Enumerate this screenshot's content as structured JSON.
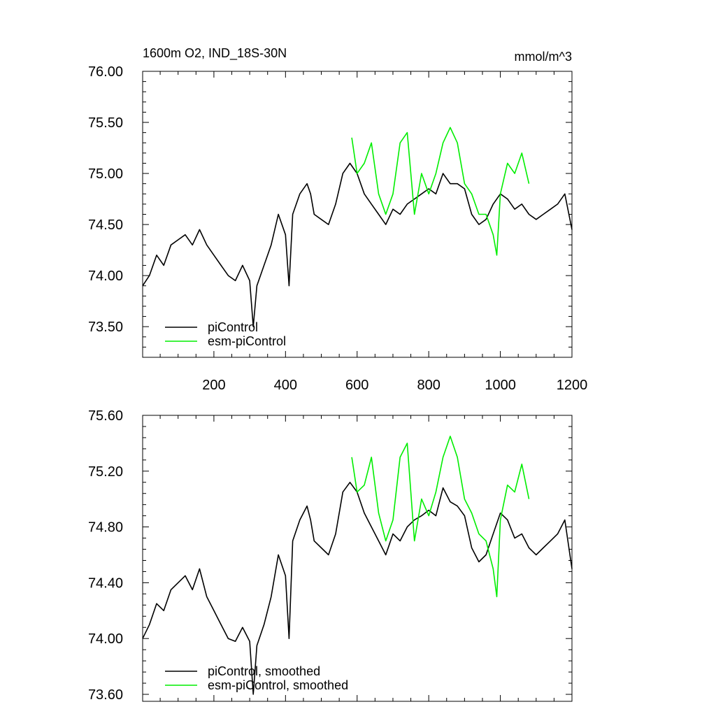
{
  "chart_data": [
    {
      "type": "line",
      "title": "1600m O2, IND_18S-30N",
      "units": "mmol/m^3",
      "xlim": [
        1,
        1200
      ],
      "ylim": [
        73.2,
        76.0
      ],
      "x_ticks": [
        200,
        400,
        600,
        800,
        1000,
        1200
      ],
      "x_tick_labels": [
        "200",
        "400",
        "600",
        "800",
        "1000",
        "1200"
      ],
      "y_ticks": [
        73.5,
        74.0,
        74.5,
        75.0,
        75.5,
        76.0
      ],
      "y_tick_labels": [
        "73.50",
        "74.00",
        "74.50",
        "75.00",
        "75.50",
        "76.00"
      ],
      "grid": false,
      "legend_position": "bottom-left",
      "series": [
        {
          "name": "piControl",
          "color": "#000000",
          "x": [
            1,
            20,
            40,
            60,
            80,
            100,
            120,
            140,
            160,
            180,
            200,
            220,
            240,
            260,
            280,
            300,
            310,
            320,
            340,
            360,
            380,
            400,
            410,
            420,
            440,
            460,
            470,
            480,
            500,
            520,
            540,
            560,
            580,
            600,
            620,
            640,
            660,
            680,
            700,
            720,
            740,
            760,
            780,
            800,
            820,
            840,
            860,
            880,
            900,
            920,
            940,
            960,
            980,
            1000,
            1020,
            1040,
            1060,
            1080,
            1100,
            1120,
            1140,
            1160,
            1180,
            1200
          ],
          "y": [
            73.9,
            74.0,
            74.2,
            74.1,
            74.3,
            74.35,
            74.4,
            74.3,
            74.45,
            74.3,
            74.2,
            74.1,
            74.0,
            73.95,
            74.1,
            73.95,
            73.5,
            73.9,
            74.1,
            74.3,
            74.6,
            74.4,
            73.9,
            74.6,
            74.8,
            74.9,
            74.8,
            74.6,
            74.55,
            74.5,
            74.7,
            75.0,
            75.1,
            75.0,
            74.8,
            74.7,
            74.6,
            74.5,
            74.65,
            74.6,
            74.7,
            74.75,
            74.8,
            74.85,
            74.8,
            75.0,
            74.9,
            74.9,
            74.85,
            74.6,
            74.5,
            74.55,
            74.7,
            74.8,
            74.75,
            74.65,
            74.7,
            74.6,
            74.55,
            74.6,
            74.65,
            74.7,
            74.8,
            74.45
          ]
        },
        {
          "name": "esm-piControl",
          "color": "#00ee00",
          "x": [
            585,
            600,
            620,
            640,
            660,
            680,
            700,
            720,
            740,
            760,
            780,
            800,
            820,
            840,
            860,
            880,
            900,
            920,
            940,
            960,
            980,
            990,
            1000,
            1020,
            1040,
            1060,
            1080
          ],
          "y": [
            75.35,
            75.0,
            75.1,
            75.3,
            74.8,
            74.6,
            74.8,
            75.3,
            75.4,
            74.6,
            75.0,
            74.8,
            75.0,
            75.3,
            75.45,
            75.3,
            74.9,
            74.8,
            74.6,
            74.6,
            74.4,
            74.2,
            74.8,
            75.1,
            75.0,
            75.2,
            74.9
          ]
        }
      ]
    },
    {
      "type": "line",
      "xlim": [
        1,
        1200
      ],
      "ylim": [
        73.55,
        75.6
      ],
      "x_ticks": [
        200,
        400,
        600,
        800,
        1000,
        1200
      ],
      "y_ticks": [
        73.6,
        74.0,
        74.4,
        74.8,
        75.2,
        75.6
      ],
      "y_tick_labels": [
        "73.60",
        "74.00",
        "74.40",
        "74.80",
        "75.20",
        "75.60"
      ],
      "grid": false,
      "legend_position": "bottom-left",
      "series": [
        {
          "name": "piControl, smoothed",
          "color": "#000000",
          "x": [
            1,
            20,
            40,
            60,
            80,
            100,
            120,
            140,
            160,
            180,
            200,
            220,
            240,
            260,
            280,
            300,
            310,
            320,
            340,
            360,
            380,
            400,
            410,
            420,
            440,
            460,
            470,
            480,
            500,
            520,
            540,
            560,
            580,
            600,
            620,
            640,
            660,
            680,
            700,
            720,
            740,
            760,
            780,
            800,
            820,
            840,
            860,
            880,
            900,
            920,
            940,
            960,
            980,
            1000,
            1020,
            1040,
            1060,
            1080,
            1100,
            1120,
            1140,
            1160,
            1180,
            1200
          ],
          "y": [
            74.0,
            74.1,
            74.25,
            74.2,
            74.35,
            74.4,
            74.45,
            74.35,
            74.5,
            74.3,
            74.2,
            74.1,
            74.0,
            73.98,
            74.08,
            73.98,
            73.6,
            73.95,
            74.1,
            74.3,
            74.6,
            74.45,
            74.0,
            74.7,
            74.85,
            74.95,
            74.85,
            74.7,
            74.65,
            74.6,
            74.75,
            75.05,
            75.12,
            75.05,
            74.9,
            74.8,
            74.7,
            74.6,
            74.75,
            74.7,
            74.8,
            74.85,
            74.88,
            74.92,
            74.88,
            75.08,
            74.98,
            74.95,
            74.88,
            74.65,
            74.55,
            74.6,
            74.75,
            74.9,
            74.85,
            74.72,
            74.75,
            74.65,
            74.6,
            74.65,
            74.7,
            74.75,
            74.85,
            74.5
          ]
        },
        {
          "name": "esm-piControl, smoothed",
          "color": "#00ee00",
          "x": [
            585,
            600,
            620,
            640,
            660,
            680,
            700,
            720,
            740,
            760,
            780,
            800,
            820,
            840,
            860,
            880,
            900,
            920,
            940,
            960,
            980,
            990,
            1000,
            1020,
            1040,
            1060,
            1080
          ],
          "y": [
            75.3,
            75.05,
            75.1,
            75.3,
            74.9,
            74.7,
            74.85,
            75.3,
            75.4,
            74.7,
            75.0,
            74.88,
            75.05,
            75.3,
            75.45,
            75.3,
            75.0,
            74.9,
            74.75,
            74.7,
            74.5,
            74.3,
            74.85,
            75.1,
            75.05,
            75.25,
            75.0
          ]
        }
      ]
    }
  ]
}
